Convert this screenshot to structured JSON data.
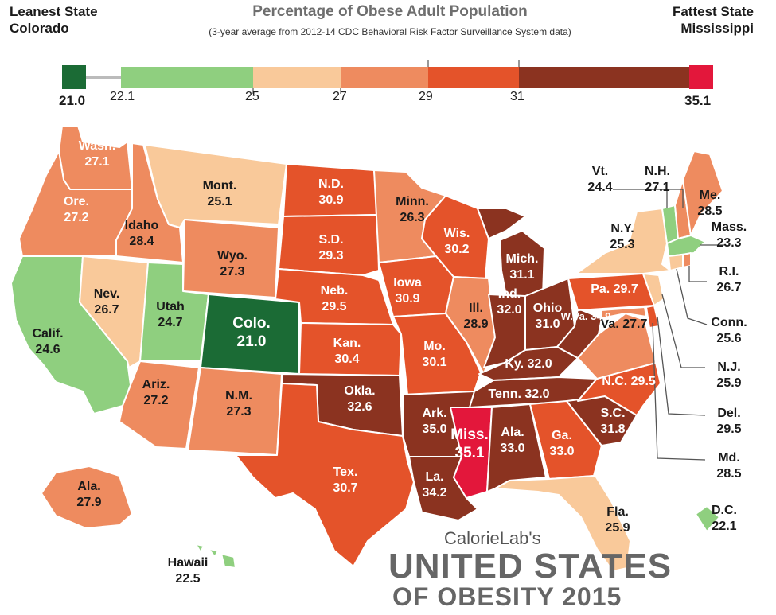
{
  "header": {
    "title": "Percentage of Obese Adult Population",
    "subtitle": "(3-year average from 2012-14 CDC Behavioral Risk Factor Surveillance System data)",
    "leanest_heading": "Leanest State",
    "leanest_state": "Colorado",
    "fattest_heading": "Fattest State",
    "fattest_state": "Mississippi"
  },
  "legend": {
    "min_label": "21.0",
    "max_label": "35.1",
    "ticks": [
      "22.1",
      "25",
      "27",
      "29",
      "31"
    ],
    "colors": {
      "min": "#1b6b35",
      "band_22_25": "#8fcf7f",
      "band_25_27": "#f9c99a",
      "band_27_29": "#ee8b5f",
      "band_29_31": "#e4532a",
      "band_31_35": "#8b3320",
      "max": "#e3173b"
    }
  },
  "map_data": {
    "type": "choropleth",
    "metric": "Percentage of Obese Adult Population",
    "states": [
      {
        "name": "Wash.",
        "value": "27.1"
      },
      {
        "name": "Ore.",
        "value": "27.2"
      },
      {
        "name": "Calif.",
        "value": "24.6"
      },
      {
        "name": "Idaho",
        "value": "28.4"
      },
      {
        "name": "Nev.",
        "value": "26.7"
      },
      {
        "name": "Mont.",
        "value": "25.1"
      },
      {
        "name": "Wyo.",
        "value": "27.3"
      },
      {
        "name": "Utah",
        "value": "24.7"
      },
      {
        "name": "Colo.",
        "value": "21.0"
      },
      {
        "name": "Ariz.",
        "value": "27.2"
      },
      {
        "name": "N.M.",
        "value": "27.3"
      },
      {
        "name": "N.D.",
        "value": "30.9"
      },
      {
        "name": "S.D.",
        "value": "29.3"
      },
      {
        "name": "Neb.",
        "value": "29.5"
      },
      {
        "name": "Kan.",
        "value": "30.4"
      },
      {
        "name": "Okla.",
        "value": "32.6"
      },
      {
        "name": "Tex.",
        "value": "30.7"
      },
      {
        "name": "Minn.",
        "value": "26.3"
      },
      {
        "name": "Iowa",
        "value": "30.9"
      },
      {
        "name": "Mo.",
        "value": "30.1"
      },
      {
        "name": "Ark.",
        "value": "35.0"
      },
      {
        "name": "La.",
        "value": "34.2"
      },
      {
        "name": "Wis.",
        "value": "30.2"
      },
      {
        "name": "Ill.",
        "value": "28.9"
      },
      {
        "name": "Mich.",
        "value": "31.1"
      },
      {
        "name": "Ind.",
        "value": "32.0"
      },
      {
        "name": "Ohio",
        "value": "31.0"
      },
      {
        "name": "Ky.",
        "value": "32.0"
      },
      {
        "name": "Tenn.",
        "value": "32.0"
      },
      {
        "name": "Miss.",
        "value": "35.1"
      },
      {
        "name": "Ala.",
        "value": "33.0"
      },
      {
        "name": "Ga.",
        "value": "33.0"
      },
      {
        "name": "Fla.",
        "value": "25.9"
      },
      {
        "name": "S.C.",
        "value": "31.8"
      },
      {
        "name": "N.C.",
        "value": "29.5"
      },
      {
        "name": "Va.",
        "value": "27.7"
      },
      {
        "name": "W.Va.",
        "value": "34.9"
      },
      {
        "name": "Pa.",
        "value": "29.7"
      },
      {
        "name": "N.Y.",
        "value": "25.3"
      },
      {
        "name": "Me.",
        "value": "28.5"
      },
      {
        "name": "Vt.",
        "value": "24.4"
      },
      {
        "name": "N.H.",
        "value": "27.1"
      },
      {
        "name": "Mass.",
        "value": "23.3"
      },
      {
        "name": "R.I.",
        "value": "26.7"
      },
      {
        "name": "Conn.",
        "value": "25.6"
      },
      {
        "name": "N.J.",
        "value": "25.9"
      },
      {
        "name": "Del.",
        "value": "29.5"
      },
      {
        "name": "Md.",
        "value": "28.5"
      },
      {
        "name": "D.C.",
        "value": "22.1"
      },
      {
        "name": "Ala.",
        "value": "27.9"
      },
      {
        "name": "Hawaii",
        "value": "22.5"
      }
    ]
  },
  "branding": {
    "publisher": "CalorieLab's",
    "title_line1": "UNITED STATES",
    "title_line2": "OF OBESITY 2015"
  }
}
